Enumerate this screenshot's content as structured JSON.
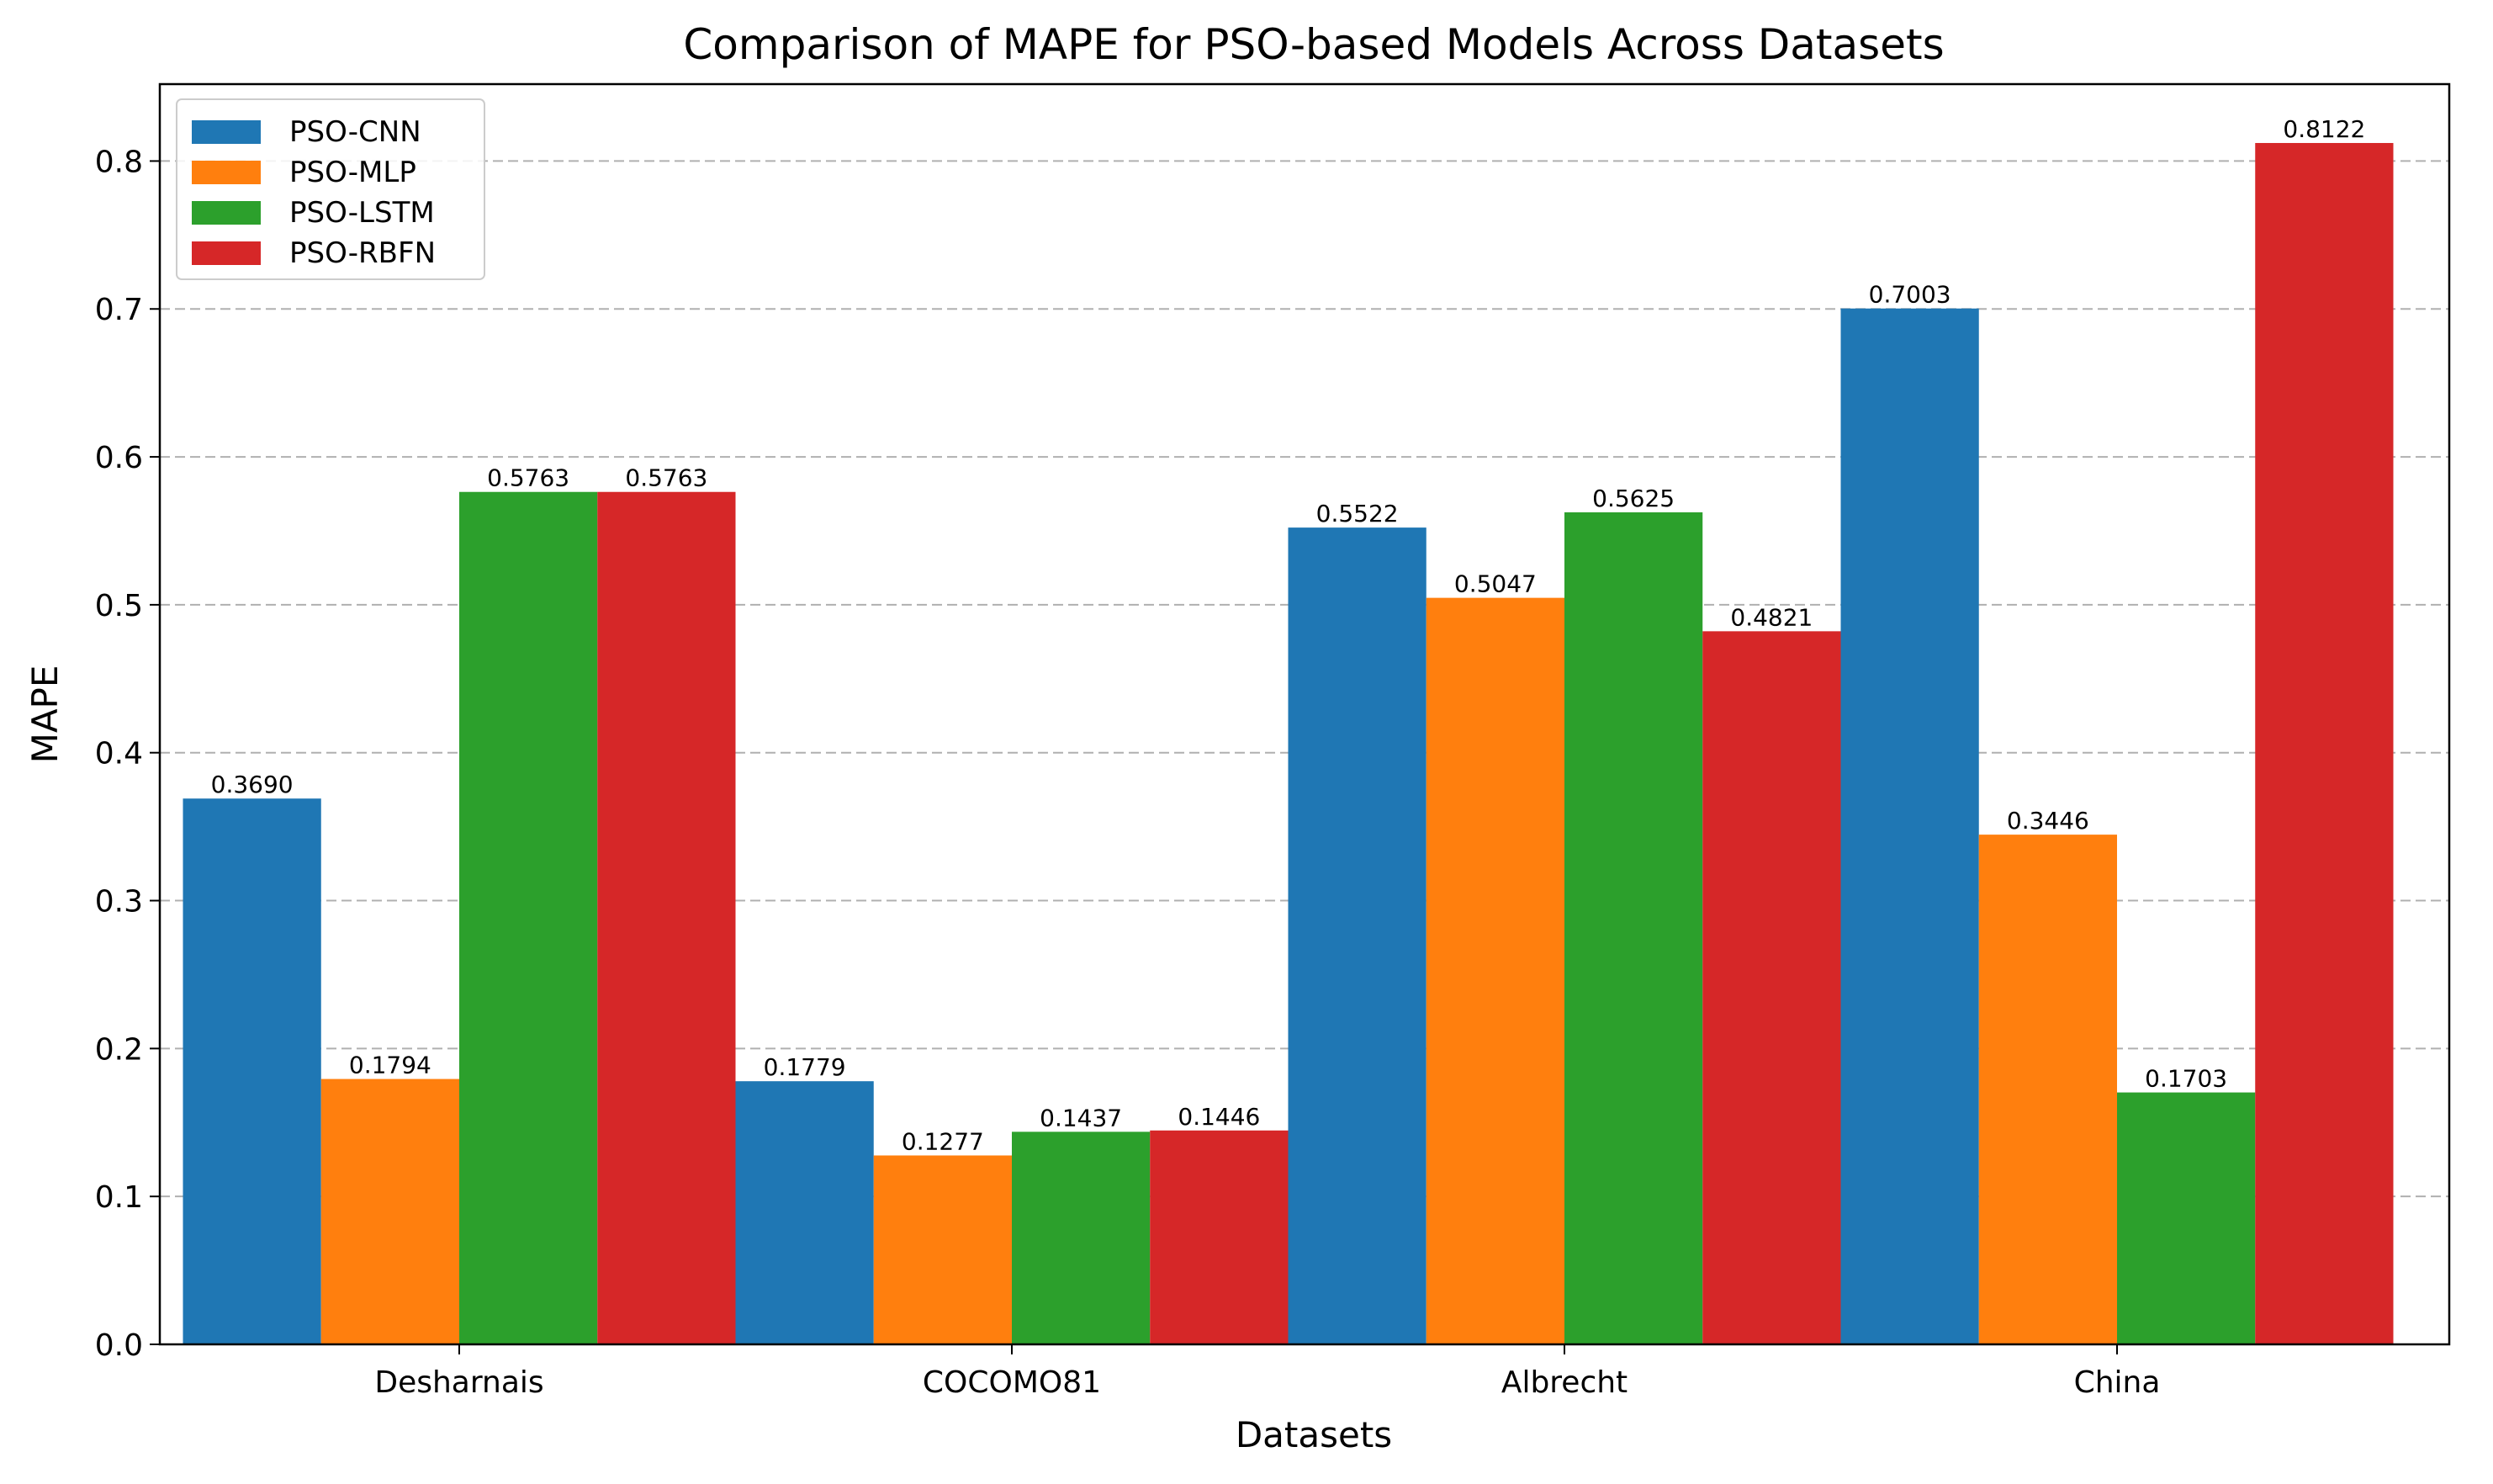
{
  "chart_data": {
    "type": "bar",
    "title": "Comparison of MAPE for PSO-based Models Across Datasets",
    "xlabel": "Datasets",
    "ylabel": "MAPE",
    "categories": [
      "Desharnais",
      "COCOMO81",
      "Albrecht",
      "China"
    ],
    "series": [
      {
        "name": "PSO-CNN",
        "color": "#1f77b4",
        "values": [
          0.369,
          0.1779,
          0.5522,
          0.7003
        ],
        "labels": [
          "0.3690",
          "0.1779",
          "0.5522",
          "0.7003"
        ]
      },
      {
        "name": "PSO-MLP",
        "color": "#ff7f0e",
        "values": [
          0.1794,
          0.1277,
          0.5047,
          0.3446
        ],
        "labels": [
          "0.1794",
          "0.1277",
          "0.5047",
          "0.3446"
        ]
      },
      {
        "name": "PSO-LSTM",
        "color": "#2ca02c",
        "values": [
          0.5763,
          0.1437,
          0.5625,
          0.1703
        ],
        "labels": [
          "0.5763",
          "0.1437",
          "0.5625",
          "0.1703"
        ]
      },
      {
        "name": "PSO-RBFN",
        "color": "#d62728",
        "values": [
          0.5763,
          0.1446,
          0.4821,
          0.8122
        ],
        "labels": [
          "0.5763",
          "0.1446",
          "0.4821",
          "0.8122"
        ]
      }
    ],
    "ylim": [
      0,
      0.852
    ],
    "yticks": [
      0.0,
      0.1,
      0.2,
      0.3,
      0.4,
      0.5,
      0.6,
      0.7,
      0.8
    ],
    "ytick_labels": [
      "0.0",
      "0.1",
      "0.2",
      "0.3",
      "0.4",
      "0.5",
      "0.6",
      "0.7",
      "0.8"
    ],
    "grid": "y-dashed",
    "legend_position": "top-left"
  }
}
